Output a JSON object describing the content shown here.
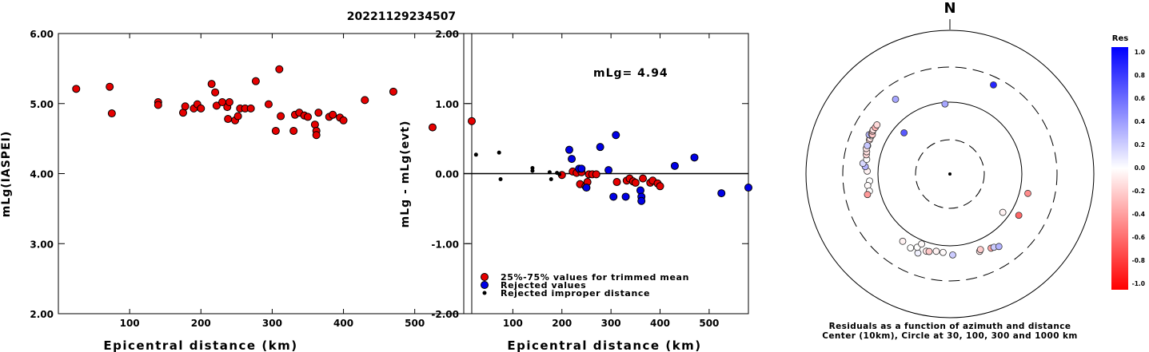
{
  "title": "20221129234507",
  "chart_data": [
    {
      "type": "scatter",
      "xlabel": "Epicentral distance (km)",
      "ylabel": "mLg(IASPEI)",
      "xlim": [
        0,
        580
      ],
      "ylim": [
        2.0,
        6.0
      ],
      "xticks": [
        "100",
        "200",
        "300",
        "400",
        "500"
      ],
      "yticks": [
        "2.00",
        "3.00",
        "4.00",
        "5.00",
        "6.00"
      ],
      "grid": false,
      "series": [
        {
          "color": "#e60000",
          "points": [
            [
              25,
              5.21
            ],
            [
              72,
              5.24
            ],
            [
              75,
              4.86
            ],
            [
              140,
              5.02
            ],
            [
              140,
              4.98
            ],
            [
              175,
              4.87
            ],
            [
              178,
              4.96
            ],
            [
              190,
              4.93
            ],
            [
              195,
              4.99
            ],
            [
              200,
              4.93
            ],
            [
              215,
              5.28
            ],
            [
              220,
              5.16
            ],
            [
              222,
              4.97
            ],
            [
              230,
              5.02
            ],
            [
              237,
              4.95
            ],
            [
              238,
              4.78
            ],
            [
              240,
              5.02
            ],
            [
              248,
              4.76
            ],
            [
              252,
              4.82
            ],
            [
              255,
              4.93
            ],
            [
              262,
              4.93
            ],
            [
              270,
              4.93
            ],
            [
              277,
              5.32
            ],
            [
              295,
              4.99
            ],
            [
              305,
              4.61
            ],
            [
              310,
              5.49
            ],
            [
              312,
              4.82
            ],
            [
              330,
              4.61
            ],
            [
              332,
              4.84
            ],
            [
              338,
              4.87
            ],
            [
              345,
              4.83
            ],
            [
              350,
              4.81
            ],
            [
              360,
              4.7
            ],
            [
              362,
              4.61
            ],
            [
              362,
              4.55
            ],
            [
              365,
              4.87
            ],
            [
              380,
              4.81
            ],
            [
              385,
              4.84
            ],
            [
              395,
              4.8
            ],
            [
              400,
              4.76
            ],
            [
              430,
              5.05
            ],
            [
              470,
              5.17
            ],
            [
              525,
              4.66
            ],
            [
              580,
              4.75
            ]
          ]
        }
      ]
    },
    {
      "type": "scatter",
      "xlabel": "Epicentral distance (km)",
      "ylabel": "mLg - mLg(evt)",
      "xlim": [
        0,
        580
      ],
      "ylim": [
        -2.0,
        2.0
      ],
      "xticks": [
        "100",
        "200",
        "300",
        "400",
        "500"
      ],
      "yticks": [
        "-2.00",
        "-1.00",
        "0.00",
        "1.00",
        "2.00"
      ],
      "annotation": "mLg= 4.94",
      "reference_line": 0.0,
      "grid": false,
      "legend_position": "bottom-left",
      "series": [
        {
          "name": "25%-75% values for trimmed mean",
          "color": "#e60000",
          "points": [
            [
              200,
              -0.02
            ],
            [
              222,
              0.03
            ],
            [
              230,
              0.01
            ],
            [
              237,
              -0.15
            ],
            [
              240,
              0.02
            ],
            [
              248,
              -0.18
            ],
            [
              252,
              -0.12
            ],
            [
              255,
              -0.01
            ],
            [
              262,
              -0.01
            ],
            [
              270,
              -0.01
            ],
            [
              312,
              -0.12
            ],
            [
              332,
              -0.1
            ],
            [
              338,
              -0.07
            ],
            [
              345,
              -0.11
            ],
            [
              350,
              -0.13
            ],
            [
              365,
              -0.07
            ],
            [
              380,
              -0.13
            ],
            [
              385,
              -0.1
            ],
            [
              395,
              -0.14
            ],
            [
              400,
              -0.18
            ]
          ]
        },
        {
          "name": "Rejected values",
          "color": "#0000e6",
          "points": [
            [
              215,
              0.34
            ],
            [
              220,
              0.21
            ],
            [
              235,
              0.07
            ],
            [
              240,
              0.07
            ],
            [
              250,
              -0.2
            ],
            [
              278,
              0.38
            ],
            [
              295,
              0.05
            ],
            [
              305,
              -0.33
            ],
            [
              310,
              0.55
            ],
            [
              330,
              -0.33
            ],
            [
              360,
              -0.24
            ],
            [
              362,
              -0.33
            ],
            [
              362,
              -0.39
            ],
            [
              430,
              0.11
            ],
            [
              470,
              0.23
            ],
            [
              525,
              -0.28
            ],
            [
              580,
              -0.2
            ]
          ]
        },
        {
          "name": "Rejected improper distance",
          "color": "#000000",
          "points": [
            [
              25,
              0.27
            ],
            [
              72,
              0.3
            ],
            [
              75,
              -0.08
            ],
            [
              140,
              0.08
            ],
            [
              140,
              0.04
            ],
            [
              175,
              0.02
            ],
            [
              178,
              -0.08
            ],
            [
              190,
              0.01
            ],
            [
              195,
              -0.01
            ]
          ]
        }
      ]
    },
    {
      "type": "scatter",
      "projection": "polar",
      "north_label": "N",
      "caption": [
        "Residuals as a function of azimuth and distance",
        "Center (10km), Circle at 30, 100, 300 and 1000 km"
      ],
      "colorbar": {
        "label": "Res",
        "ticks": [
          "1.0",
          "0.8",
          "0.6",
          "0.4",
          "0.2",
          "0.0",
          "-0.2",
          "-0.4",
          "-0.6",
          "-0.8",
          "-1.0"
        ],
        "range": [
          -1.0,
          1.0
        ]
      },
      "points_az_dist_res": [
        [
          26,
          235,
          0.85
        ],
        [
          324,
          190,
          0.35
        ],
        [
          312,
          72,
          0.65
        ],
        [
          356,
          95,
          0.35
        ],
        [
          289,
          160,
          -0.08
        ],
        [
          293,
          162,
          -0.18
        ],
        [
          294,
          162,
          -0.1
        ],
        [
          296,
          162,
          0.0
        ],
        [
          296,
          175,
          0.28
        ],
        [
          297,
          165,
          -0.15
        ],
        [
          297,
          160,
          -0.22
        ],
        [
          299,
          167,
          -0.25
        ],
        [
          300,
          168,
          -0.12
        ],
        [
          302,
          165,
          -0.3
        ],
        [
          304,
          165,
          -0.14
        ],
        [
          272,
          140,
          -0.05
        ],
        [
          275,
          150,
          0.3
        ],
        [
          277,
          163,
          0.15
        ],
        [
          280,
          148,
          0.0
        ],
        [
          283,
          154,
          -0.16
        ],
        [
          285,
          156,
          -0.12
        ],
        [
          287,
          162,
          -0.1
        ],
        [
          289,
          162,
          0.22
        ],
        [
          265,
          131,
          0.0
        ],
        [
          262,
          141,
          -0.02
        ],
        [
          258,
          138,
          0.0
        ],
        [
          256,
          150,
          -0.4
        ],
        [
          126,
          81,
          -0.05
        ],
        [
          121,
          130,
          -0.6
        ],
        [
          104,
          130,
          -0.45
        ],
        [
          215,
          138,
          -0.05
        ],
        [
          208,
          145,
          0.0
        ],
        [
          202,
          152,
          0.05
        ],
        [
          204,
          130,
          0.0
        ],
        [
          197,
          132,
          -0.1
        ],
        [
          202,
          112,
          -0.02
        ],
        [
          190,
          123,
          -0.05
        ],
        [
          195,
          130,
          -0.22
        ],
        [
          185,
          124,
          -0.02
        ],
        [
          178,
          133,
          0.2
        ],
        [
          159,
          141,
          -0.1
        ],
        [
          158,
          135,
          -0.2
        ],
        [
          151,
          150,
          -0.35
        ],
        [
          149,
          153,
          0.2
        ],
        [
          146,
          163,
          0.3
        ]
      ]
    }
  ]
}
